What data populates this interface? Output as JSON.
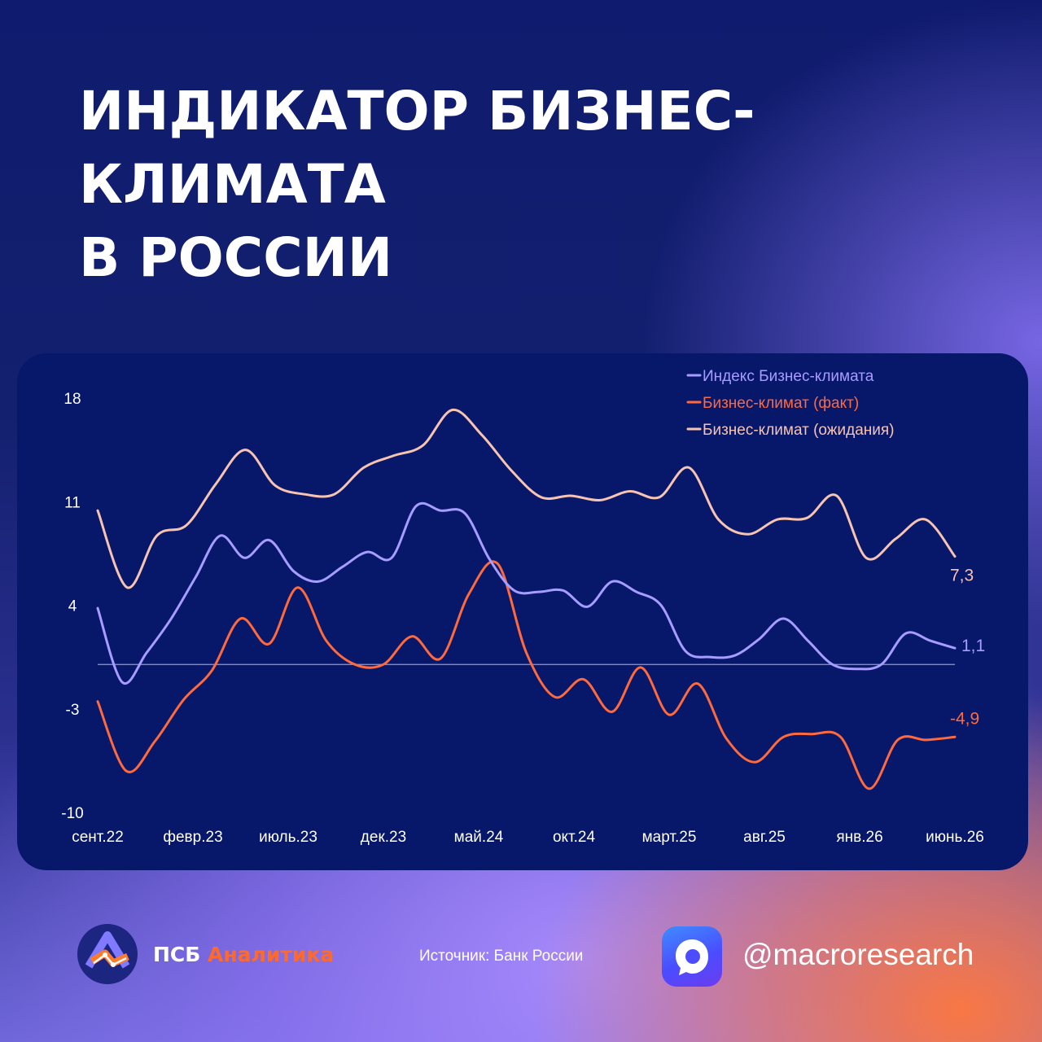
{
  "header": {
    "title_line1": "ИНДИКАТОР БИЗНЕС-КЛИМАТА",
    "title_line2": "В РОССИИ"
  },
  "chart_data": {
    "type": "line",
    "ylim": [
      -10,
      18
    ],
    "yticks": [
      "18",
      "11",
      "4",
      "-3",
      "-10"
    ],
    "ytick_values": [
      18,
      11,
      4,
      -3,
      -10
    ],
    "x_tick_labels": [
      "сент.22",
      "февр.23",
      "июль.23",
      "дек.23",
      "май.24",
      "окт.24",
      "март.25",
      "авг.25",
      "янв.26",
      "июнь.26"
    ],
    "x_tick_index": [
      0,
      5,
      10,
      15,
      20,
      25,
      30,
      35,
      40,
      45
    ],
    "zero_line": 0,
    "legend_position": "top-right",
    "series": [
      {
        "name": "Индекс Бизнес-климата",
        "color": "#a79cff",
        "end_label": "1,1",
        "values": [
          3.8,
          -1.2,
          0.8,
          3.1,
          5.9,
          8.7,
          7.2,
          8.4,
          6.3,
          5.6,
          6.6,
          7.6,
          7.2,
          10.7,
          10.4,
          10.2,
          7.1,
          5.0,
          4.9,
          5.0,
          3.9,
          5.6,
          4.9,
          4.0,
          0.9,
          0.5,
          0.6,
          1.7,
          3.1,
          1.6,
          0.0,
          -0.3,
          0.0,
          2.1,
          1.6,
          1.1
        ]
      },
      {
        "name": "Бизнес-климат (факт)",
        "color": "#ff6a3d",
        "end_label": "-4,9",
        "values": [
          -2.5,
          -7.2,
          -5.2,
          -2.4,
          -0.4,
          3.1,
          1.4,
          5.2,
          1.6,
          0.0,
          0.0,
          1.9,
          0.4,
          4.8,
          6.8,
          0.8,
          -2.2,
          -1.0,
          -3.2,
          -0.2,
          -3.4,
          -1.3,
          -5.0,
          -6.6,
          -4.9,
          -4.7,
          -4.9,
          -8.4,
          -5.1,
          -5.1,
          -4.9
        ]
      },
      {
        "name": "Бизнес-климат (ожидания)",
        "color": "#f7c4b2",
        "end_label": "7,3",
        "values": [
          10.4,
          5.2,
          8.7,
          9.4,
          12.2,
          14.5,
          12.1,
          11.5,
          11.5,
          13.3,
          14.1,
          14.8,
          17.2,
          15.5,
          13.1,
          11.3,
          11.4,
          11.1,
          11.7,
          11.3,
          13.3,
          9.8,
          8.8,
          9.8,
          9.9,
          11.4,
          7.2,
          8.5,
          9.8,
          7.3
        ]
      }
    ]
  },
  "footer": {
    "brand_primary": "ПСБ",
    "brand_accent": "Аналитика",
    "source": "Источник: Банк России",
    "handle": "@macroresearch"
  }
}
